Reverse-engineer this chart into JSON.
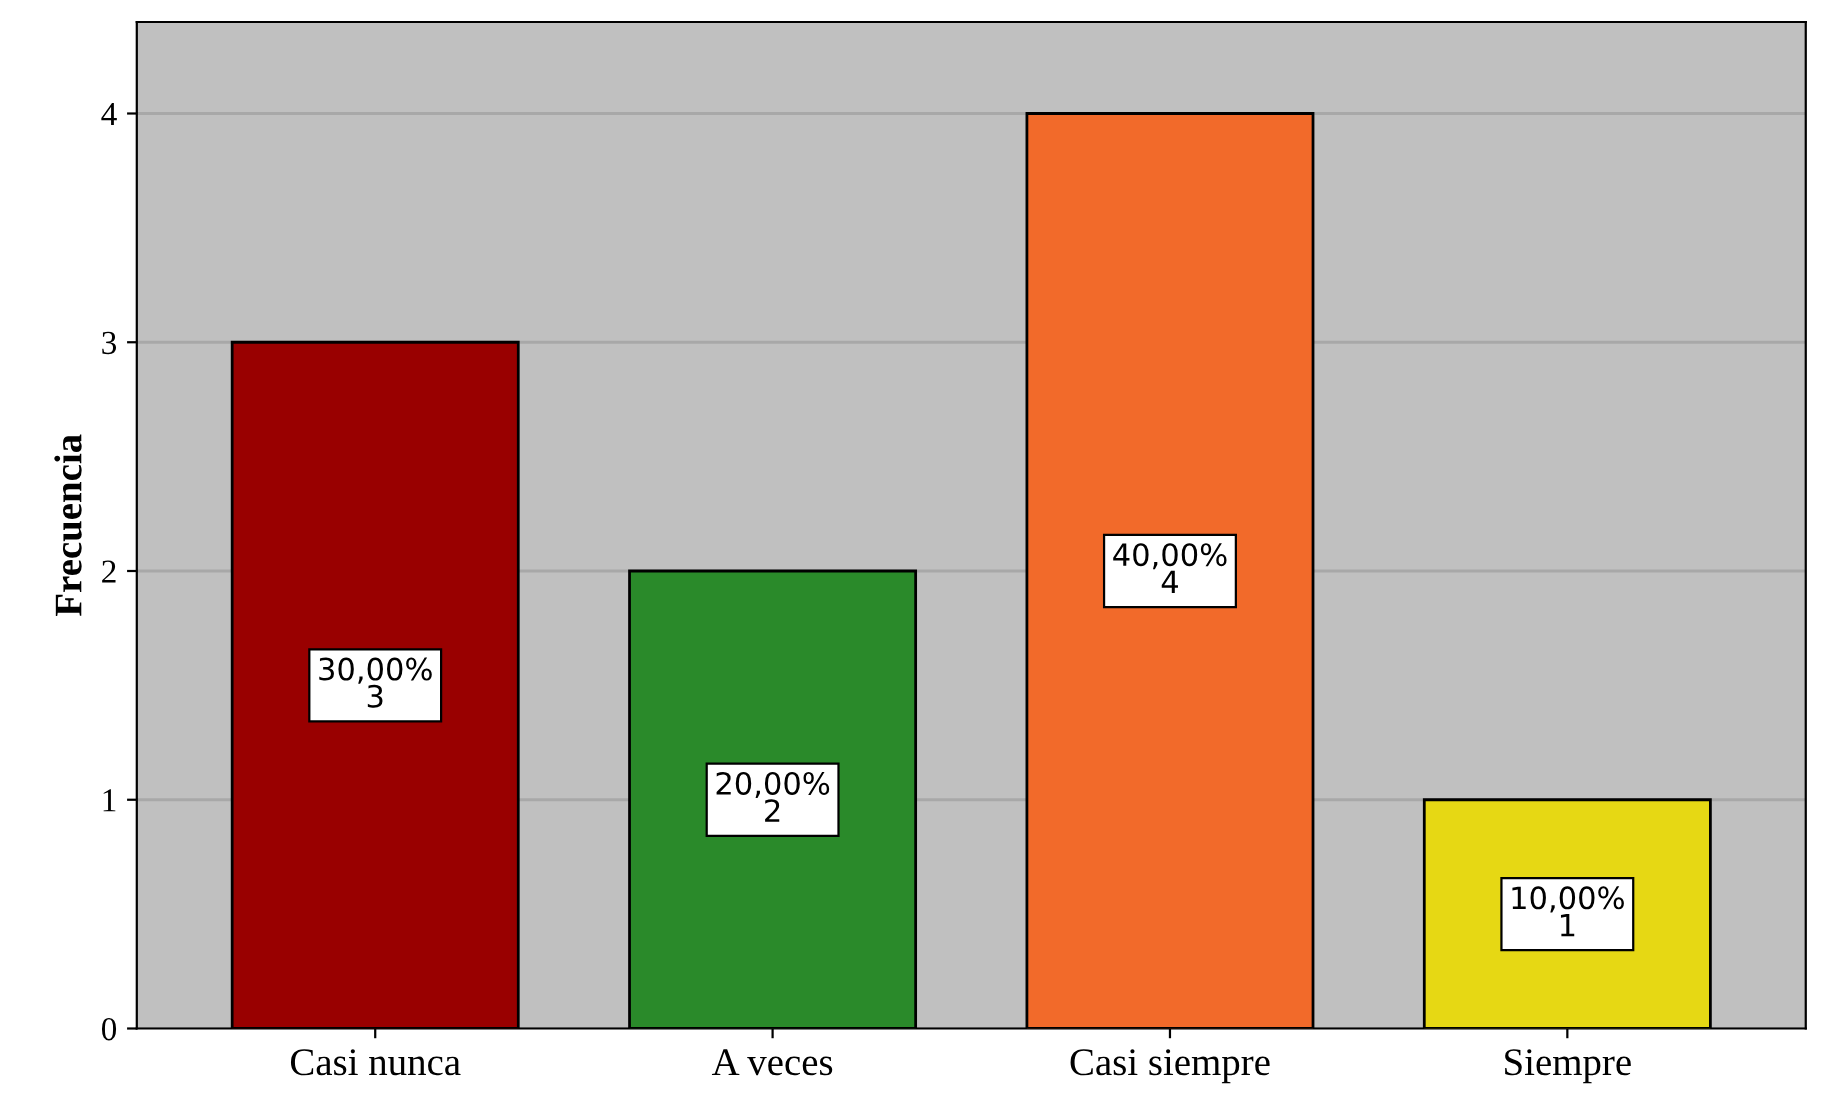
{
  "chart_data": {
    "type": "bar",
    "ylabel": "Frecuencia",
    "categories": [
      "Casi nunca",
      "A veces",
      "Casi siempre",
      "Siempre"
    ],
    "values": [
      3,
      2,
      4,
      1
    ],
    "colors": [
      "#990000",
      "#2a8a2a",
      "#f26a2a",
      "#e6d814"
    ],
    "value_labels": [
      "30,00%\n3",
      "20,00%\n2",
      "40,00%\n4",
      "10,00%\n1"
    ],
    "ylim": [
      0,
      4.4
    ],
    "yticks": [
      0,
      1,
      2,
      3,
      4
    ],
    "grid": "y"
  }
}
